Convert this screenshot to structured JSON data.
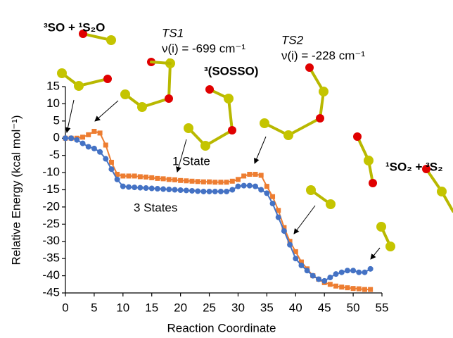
{
  "chart_data": {
    "type": "line",
    "x_label": "Reaction Coordinate",
    "y_label": "Relative Energy (kcal mol⁻¹)",
    "xlim": [
      0,
      55
    ],
    "xticks": [
      0,
      5,
      10,
      15,
      20,
      25,
      30,
      35,
      40,
      45,
      50,
      55
    ],
    "ylim": [
      -45,
      15
    ],
    "yticks": [
      -45,
      -40,
      -35,
      -30,
      -25,
      -20,
      -15,
      -10,
      -5,
      0,
      5,
      10,
      15
    ],
    "x": [
      0,
      1,
      2,
      3,
      4,
      5,
      6,
      7,
      8,
      9,
      10,
      11,
      12,
      13,
      14,
      15,
      16,
      17,
      18,
      19,
      20,
      21,
      22,
      23,
      24,
      25,
      26,
      27,
      28,
      29,
      30,
      31,
      32,
      33,
      34,
      35,
      36,
      37,
      38,
      39,
      40,
      41,
      42,
      43,
      44,
      45,
      46,
      47,
      48,
      49,
      50,
      51,
      52,
      53
    ],
    "series": [
      {
        "name": "1 State",
        "color": "#ed7d31",
        "marker": "square",
        "values": [
          0,
          0,
          0,
          0.3,
          1,
          2,
          1.5,
          -2,
          -7,
          -10.5,
          -11,
          -11,
          -11,
          -11.2,
          -11.3,
          -11.5,
          -11.7,
          -11.8,
          -12,
          -12.1,
          -12.3,
          -12.4,
          -12.5,
          -12.6,
          -12.7,
          -12.7,
          -12.8,
          -12.8,
          -12.8,
          -12.5,
          -12,
          -11,
          -10.5,
          -10.5,
          -10.8,
          -14,
          -17,
          -21,
          -26,
          -30,
          -33,
          -36,
          -38,
          -40,
          -41,
          -42,
          -42.5,
          -43,
          -43.3,
          -43.5,
          -43.7,
          -43.8,
          -44,
          -44
        ]
      },
      {
        "name": "3 States",
        "color": "#4472c4",
        "marker": "circle",
        "values": [
          0,
          0,
          -0.5,
          -1.5,
          -2.5,
          -3,
          -4,
          -6,
          -9,
          -12,
          -14,
          -14.2,
          -14.3,
          -14.4,
          -14.5,
          -14.6,
          -14.7,
          -14.8,
          -14.9,
          -15,
          -15.1,
          -15.2,
          -15.3,
          -15.4,
          -15.5,
          -15.5,
          -15.5,
          -15.5,
          -15.5,
          -15,
          -14,
          -13.8,
          -13.8,
          -14,
          -15,
          -16,
          -19,
          -23,
          -27,
          -31,
          -35,
          -37,
          -38.5,
          -40,
          -41,
          -41.5,
          -40.5,
          -39.5,
          -39,
          -38.5,
          -38.5,
          -39,
          -39,
          -38
        ]
      }
    ],
    "annotations": [
      "³SO + ¹S₂O",
      "TS1",
      "ν(i) = -699 cm⁻¹",
      "TS2",
      "ν(i) = -228 cm⁻¹",
      "³(SOSSO)",
      "¹SO₂ + ³S₂"
    ]
  }
}
